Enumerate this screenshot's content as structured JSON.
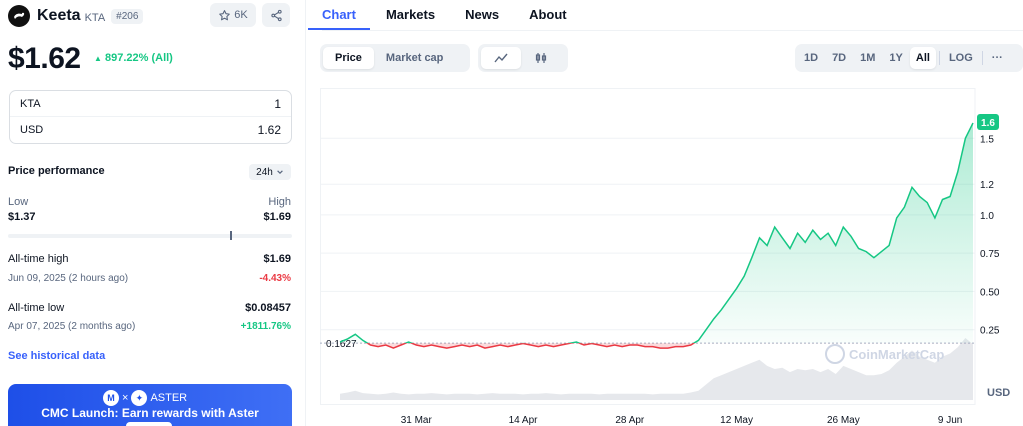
{
  "coin": {
    "name": "Keeta",
    "symbol": "KTA",
    "rank": "#206",
    "watchlist_count": "6K",
    "price": "$1.62",
    "price_change": "897.22% (All)",
    "logo_icon": "keeta-logo-icon"
  },
  "converter": {
    "rows": [
      {
        "label": "KTA",
        "value": "1"
      },
      {
        "label": "USD",
        "value": "1.62"
      }
    ]
  },
  "performance": {
    "title": "Price performance",
    "period": "24h",
    "low_label": "Low",
    "low_value": "$1.37",
    "high_label": "High",
    "high_value": "$1.69",
    "range_position": 0.78
  },
  "stats": {
    "ath_label": "All-time high",
    "ath_value": "$1.69",
    "ath_date": "Jun 09, 2025 (2 hours ago)",
    "ath_pct": "-4.43%",
    "atl_label": "All-time low",
    "atl_value": "$0.08457",
    "atl_date": "Apr 07, 2025 (2 months ago)",
    "atl_pct": "+1811.76%"
  },
  "links": {
    "historical": "See historical data"
  },
  "banner": {
    "brand": "ASTER",
    "separator": "×",
    "text": "CMC Launch: Earn rewards with Aster"
  },
  "tabs": [
    "Chart",
    "Markets",
    "News",
    "About"
  ],
  "toolbar": {
    "type_options": [
      "Price",
      "Market cap"
    ],
    "time_options": [
      "1D",
      "7D",
      "1M",
      "1Y",
      "All"
    ],
    "log_label": "LOG",
    "more_label": "···"
  },
  "colors": {
    "accent": "#3861fb",
    "up": "#16c784",
    "down": "#ea3943"
  },
  "chart_data": {
    "type": "line",
    "current_price_label": "1.6",
    "baseline_label": "0.1627",
    "baseline": 0.1627,
    "watermark": "CoinMarketCap",
    "y_ticks": [
      0.25,
      0.5,
      0.75,
      1.0,
      1.2,
      1.5
    ],
    "y_tick_labels": [
      "0.25",
      "0.50",
      "0.75",
      "1.0",
      "1.2",
      "1.5"
    ],
    "y_unit_label": "USD",
    "x_tick_labels": [
      "31 Mar",
      "14 Apr",
      "28 Apr",
      "12 May",
      "26 May",
      "9 Jun"
    ],
    "ylim": [
      0,
      1.75
    ],
    "series": [
      {
        "x_days": [
          0,
          1,
          2,
          3,
          4,
          5,
          6,
          7,
          8,
          9,
          10,
          11,
          12,
          13,
          14,
          15,
          16,
          17,
          18,
          19,
          20,
          21,
          22,
          23,
          24,
          25,
          26,
          27,
          28,
          29,
          30,
          31,
          32,
          33,
          34,
          35,
          36,
          37,
          38,
          39,
          40,
          41,
          42,
          43,
          44,
          45,
          46,
          47,
          48,
          49,
          50,
          51,
          52,
          53,
          54,
          55,
          56,
          57,
          58,
          59,
          60,
          61,
          62,
          63,
          64,
          65,
          66,
          67,
          68,
          69,
          70,
          71,
          72,
          73,
          74,
          75,
          76,
          77,
          78,
          79,
          80,
          81,
          82,
          83
        ],
        "values": [
          0.17,
          0.19,
          0.22,
          0.18,
          0.15,
          0.14,
          0.15,
          0.13,
          0.15,
          0.17,
          0.15,
          0.14,
          0.15,
          0.14,
          0.13,
          0.14,
          0.15,
          0.14,
          0.15,
          0.13,
          0.14,
          0.15,
          0.14,
          0.15,
          0.16,
          0.15,
          0.14,
          0.15,
          0.14,
          0.15,
          0.16,
          0.17,
          0.15,
          0.16,
          0.15,
          0.14,
          0.15,
          0.14,
          0.15,
          0.15,
          0.14,
          0.14,
          0.13,
          0.13,
          0.14,
          0.14,
          0.15,
          0.18,
          0.25,
          0.32,
          0.38,
          0.45,
          0.52,
          0.6,
          0.72,
          0.85,
          0.8,
          0.92,
          0.85,
          0.78,
          0.88,
          0.82,
          0.9,
          0.84,
          0.88,
          0.8,
          0.92,
          0.86,
          0.78,
          0.76,
          0.72,
          0.76,
          0.8,
          0.98,
          1.05,
          1.18,
          1.12,
          1.08,
          0.98,
          1.1,
          1.12,
          1.28,
          1.5,
          1.6
        ]
      }
    ],
    "volume": [
      0.1,
      0.12,
      0.15,
      0.11,
      0.1,
      0.09,
      0.1,
      0.12,
      0.1,
      0.09,
      0.1,
      0.1,
      0.11,
      0.1,
      0.09,
      0.1,
      0.1,
      0.1,
      0.09,
      0.1,
      0.11,
      0.1,
      0.1,
      0.1,
      0.09,
      0.1,
      0.1,
      0.11,
      0.1,
      0.09,
      0.1,
      0.1,
      0.1,
      0.1,
      0.09,
      0.1,
      0.1,
      0.1,
      0.1,
      0.1,
      0.1,
      0.09,
      0.1,
      0.1,
      0.1,
      0.1,
      0.12,
      0.15,
      0.25,
      0.35,
      0.4,
      0.45,
      0.5,
      0.55,
      0.6,
      0.65,
      0.55,
      0.5,
      0.52,
      0.45,
      0.5,
      0.48,
      0.5,
      0.45,
      0.5,
      0.42,
      0.55,
      0.5,
      0.45,
      0.4,
      0.4,
      0.42,
      0.48,
      0.6,
      0.7,
      0.8,
      0.7,
      0.65,
      0.6,
      0.7,
      0.75,
      0.85,
      1.0,
      0.9
    ]
  }
}
